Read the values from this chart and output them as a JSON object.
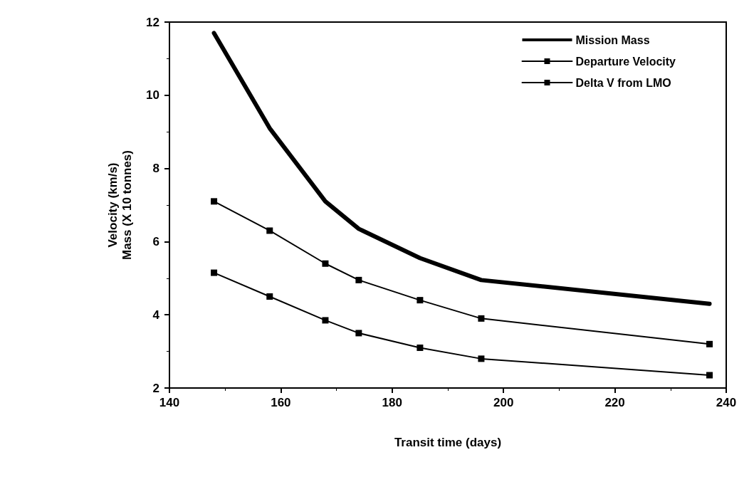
{
  "chart_data": {
    "type": "line",
    "xlabel": "Transit time (days)",
    "ylabel": "Velocity (km/s)\nMass (X 10 tonnes)",
    "x": [
      148,
      158,
      168,
      174,
      185,
      196,
      237
    ],
    "series": [
      {
        "name": "Mission Mass",
        "color": "#000000",
        "marker": "none",
        "values": [
          11.7,
          9.1,
          7.1,
          6.35,
          5.55,
          4.95,
          4.3
        ]
      },
      {
        "name": "Departure Velocity",
        "color": "#000000",
        "marker": "square",
        "values": [
          7.1,
          6.3,
          5.4,
          4.95,
          4.4,
          3.9,
          3.2
        ]
      },
      {
        "name": "Delta V from LMO",
        "color": "#000000",
        "marker": "square",
        "values": [
          5.15,
          4.5,
          3.85,
          3.5,
          3.1,
          2.8,
          2.35
        ]
      }
    ],
    "xlim": [
      140,
      240
    ],
    "xticks": [
      140,
      160,
      180,
      200,
      220,
      240
    ],
    "ylim": [
      2,
      12
    ],
    "yticks": [
      2,
      4,
      6,
      8,
      10,
      12
    ],
    "grid": false,
    "legend": "top right",
    "line_style": "solid"
  }
}
